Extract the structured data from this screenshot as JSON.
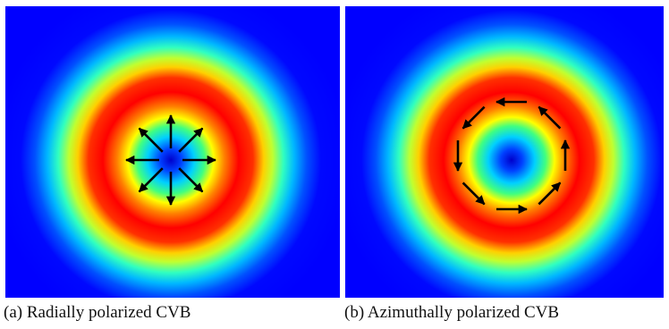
{
  "figure": {
    "panels": [
      {
        "id": "a",
        "caption": "(a) Radially polarized CVB",
        "polarization": "radial",
        "arrow_directions_deg": [
          0,
          45,
          90,
          135,
          180,
          225,
          270,
          315
        ]
      },
      {
        "id": "b",
        "caption": "(b) Azimuthally polarized CVB",
        "polarization": "azimuthal",
        "arrow_directions_deg": [
          0,
          45,
          90,
          135,
          180,
          225,
          270,
          315
        ]
      }
    ],
    "colormap": "jet",
    "colors": {
      "background": "#0000ff",
      "ring_peak": "#ff0000",
      "arrow": "#000000"
    }
  }
}
